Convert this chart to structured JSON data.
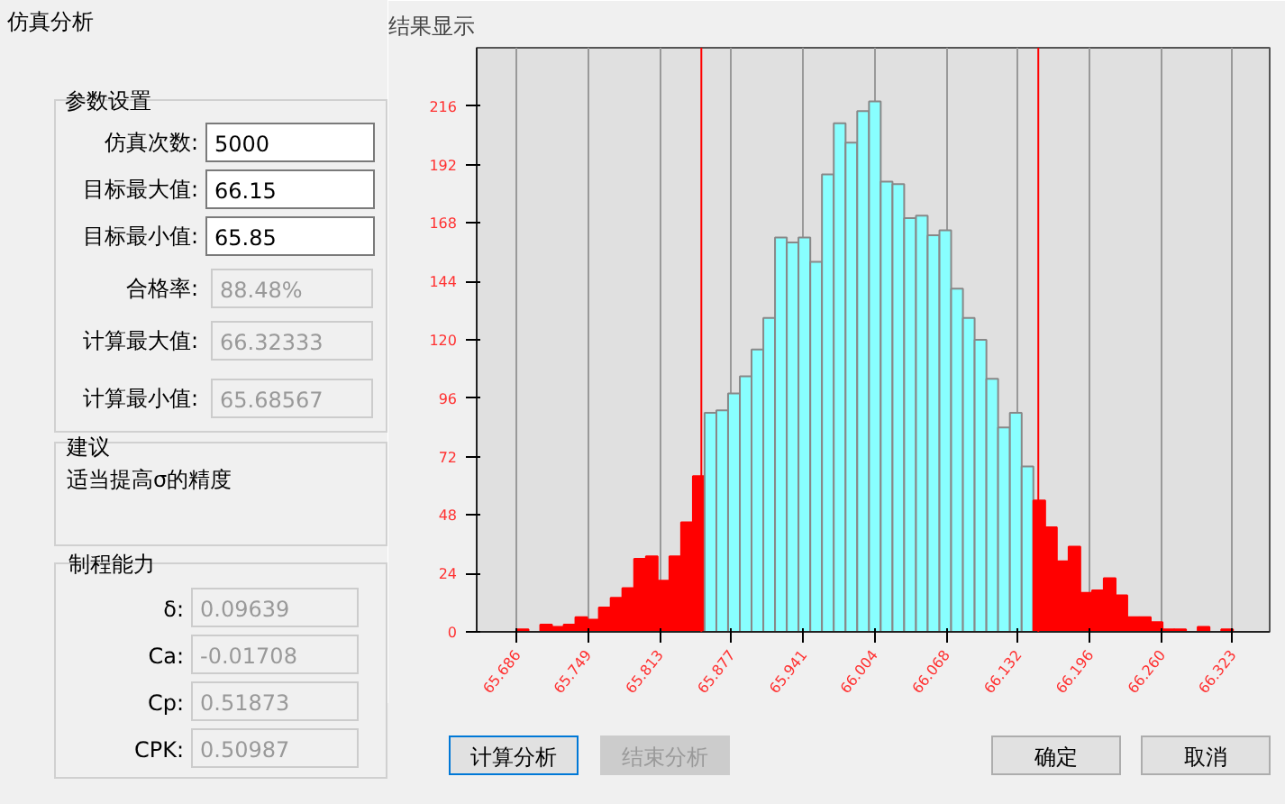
{
  "chart_data": {
    "type": "histogram",
    "title": "结果显示",
    "bins": [
      65.6857,
      65.6961,
      65.7066,
      65.717,
      65.7275,
      65.7379,
      65.7484,
      65.7588,
      65.7693,
      65.7797,
      65.7902,
      65.8007,
      65.8111,
      65.8216,
      65.832,
      65.8425,
      65.8529,
      65.8634,
      65.8738,
      65.8843,
      65.8947,
      65.9052,
      65.9156,
      65.9261,
      65.9365,
      65.947,
      65.9574,
      65.9679,
      65.9784,
      65.9888,
      65.9993,
      66.0097,
      66.0202,
      66.0306,
      66.0411,
      66.0515,
      66.062,
      66.0724,
      66.0829,
      66.0933,
      66.1038,
      66.1142,
      66.1247,
      66.1352,
      66.1456,
      66.1561,
      66.1665,
      66.177,
      66.1874,
      66.1979,
      66.2083,
      66.2188,
      66.2292,
      66.2397,
      66.2501,
      66.2606,
      66.271,
      66.2815,
      66.2919,
      66.3024,
      66.3129,
      66.3233
    ],
    "values": [
      1,
      0,
      3,
      2,
      3,
      6,
      5,
      10,
      14,
      18,
      30,
      31,
      21,
      31,
      45,
      64,
      90,
      91,
      98,
      105,
      116,
      129,
      162,
      160,
      162,
      152,
      188,
      209,
      201,
      214,
      218,
      185,
      184,
      170,
      171,
      163,
      165,
      141,
      129,
      120,
      104,
      84,
      90,
      68,
      54,
      43,
      29,
      35,
      16,
      17,
      22,
      15,
      6,
      6,
      4,
      1,
      1,
      0,
      2,
      0,
      1
    ],
    "colors": [
      "#ff0000",
      "#ff0000",
      "#ff0000",
      "#ff0000",
      "#ff0000",
      "#ff0000",
      "#ff0000",
      "#ff0000",
      "#ff0000",
      "#ff0000",
      "#ff0000",
      "#ff0000",
      "#ff0000",
      "#ff0000",
      "#ff0000",
      "#ff0000",
      "#88ffff",
      "#88ffff",
      "#88ffff",
      "#88ffff",
      "#88ffff",
      "#88ffff",
      "#88ffff",
      "#88ffff",
      "#88ffff",
      "#88ffff",
      "#88ffff",
      "#88ffff",
      "#88ffff",
      "#88ffff",
      "#88ffff",
      "#88ffff",
      "#88ffff",
      "#88ffff",
      "#88ffff",
      "#88ffff",
      "#88ffff",
      "#88ffff",
      "#88ffff",
      "#88ffff",
      "#88ffff",
      "#88ffff",
      "#88ffff",
      "#88ffff",
      "#ff0000",
      "#ff0000",
      "#ff0000",
      "#ff0000",
      "#ff0000",
      "#ff0000",
      "#ff0000",
      "#ff0000",
      "#ff0000",
      "#ff0000",
      "#ff0000",
      "#ff0000",
      "#ff0000",
      "#ff0000",
      "#ff0000",
      "#ff0000",
      "#ff0000"
    ],
    "xlim": [
      65.65,
      66.356
    ],
    "ylim": [
      0,
      240
    ],
    "xticks": [
      65.686,
      65.749,
      65.813,
      65.877,
      65.941,
      66.004,
      66.068,
      66.132,
      66.196,
      {
        "value": 66.26,
        "label": "66.260"
      },
      66.323
    ],
    "yticks": [
      0,
      24,
      48,
      72,
      96,
      120,
      144,
      168,
      192,
      216
    ],
    "grid": "x",
    "ref_lines": [
      {
        "axis": "x",
        "value": 65.85,
        "color": "#ff0000"
      },
      {
        "axis": "x",
        "value": 66.15,
        "color": "#ff0000"
      }
    ],
    "annotations": [
      "仿真分析",
      "参数设置",
      "仿真次数:",
      "5000",
      "目标最大值:",
      "66.15",
      "目标最小值:",
      "65.85",
      "合格率:",
      "88.48%",
      "计算最大值:",
      "66.32333",
      "计算最小值:",
      "65.68567",
      "建议",
      "适当提高σ的精度",
      "制程能力",
      "δ:",
      "0.09639",
      "Ca:",
      "-0.01708",
      "Cp:",
      "0.51873",
      "CPK:",
      "0.50987",
      "计算分析",
      "结束分析",
      "确定",
      "取消"
    ]
  }
}
